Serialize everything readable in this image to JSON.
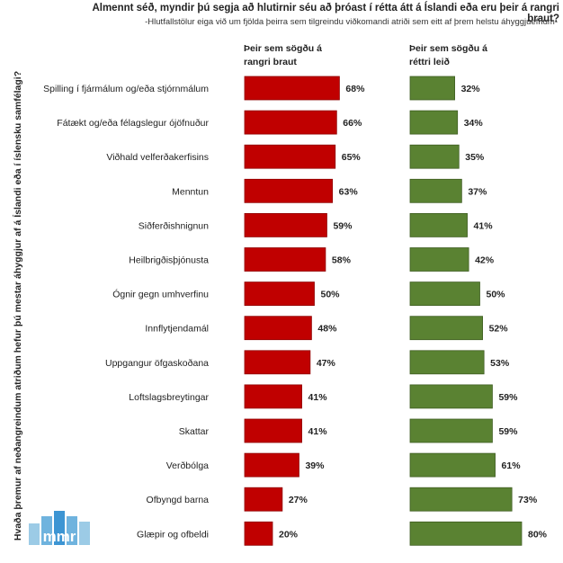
{
  "title": "Almennt séð, myndir þú segja að hlutirnir séu að þróast í rétta átt á Íslandi eða eru þeir á rangri braut?",
  "subtitle": "-Hlutfallstölur eiga við um fjölda þeirra sem tilgreindu viðkomandi atriði sem eitt af þrem helstu áhyggjuefnum-",
  "ylabel": "Hvaða þremur af neðangreindum atriðum hefur þú mestar áhyggjur af á Íslandi eða í íslensku samfélagi?",
  "series_headers": {
    "wrong": [
      "Þeir sem sögðu á",
      "rangri braut"
    ],
    "right": [
      "Þeir sem sögðu á",
      "réttri leið"
    ]
  },
  "logo_text": "mmr",
  "colors": {
    "wrong": "#c00000",
    "right": "#5a8232",
    "wrong_edge": "#8f0000",
    "right_edge": "#3f5e22"
  },
  "chart_data": {
    "type": "bar",
    "orientation": "horizontal",
    "categories": [
      "Spilling í fjármálum og/eða stjórnmálum",
      "Fátækt og/eða félagslegur ójöfnuður",
      "Viðhald velferðakerfisins",
      "Menntun",
      "Siðferðishnignun",
      "Heilbrigðisþjónusta",
      "Ógnir gegn umhverfinu",
      "Innflytjendamál",
      "Uppgangur öfgaskoðana",
      "Loftslagsbreytingar",
      "Skattar",
      "Verðbólga",
      "Ofbyngd barna",
      "Glæpir og ofbeldi"
    ],
    "series": [
      {
        "name": "Þeir sem sögðu á rangri braut",
        "values": [
          68,
          66,
          65,
          63,
          59,
          58,
          50,
          48,
          47,
          41,
          41,
          39,
          27,
          20
        ]
      },
      {
        "name": "Þeir sem sögðu á réttri leið",
        "values": [
          32,
          34,
          35,
          37,
          41,
          42,
          50,
          52,
          53,
          59,
          59,
          61,
          73,
          80
        ]
      }
    ],
    "data_labels": {
      "wrong": [
        "68%",
        "66%",
        "65%",
        "63%",
        "59%",
        "58%",
        "50%",
        "48%",
        "47%",
        "41%",
        "41%",
        "39%",
        "27%",
        "20%"
      ],
      "right": [
        "32%",
        "34%",
        "35%",
        "37%",
        "41%",
        "42%",
        "50%",
        "52%",
        "53%",
        "59%",
        "59%",
        "61%",
        "73%",
        "80%"
      ]
    },
    "value_unit": "%",
    "xlim": [
      0,
      100
    ],
    "grid": false,
    "legend": "column headers above bars"
  }
}
